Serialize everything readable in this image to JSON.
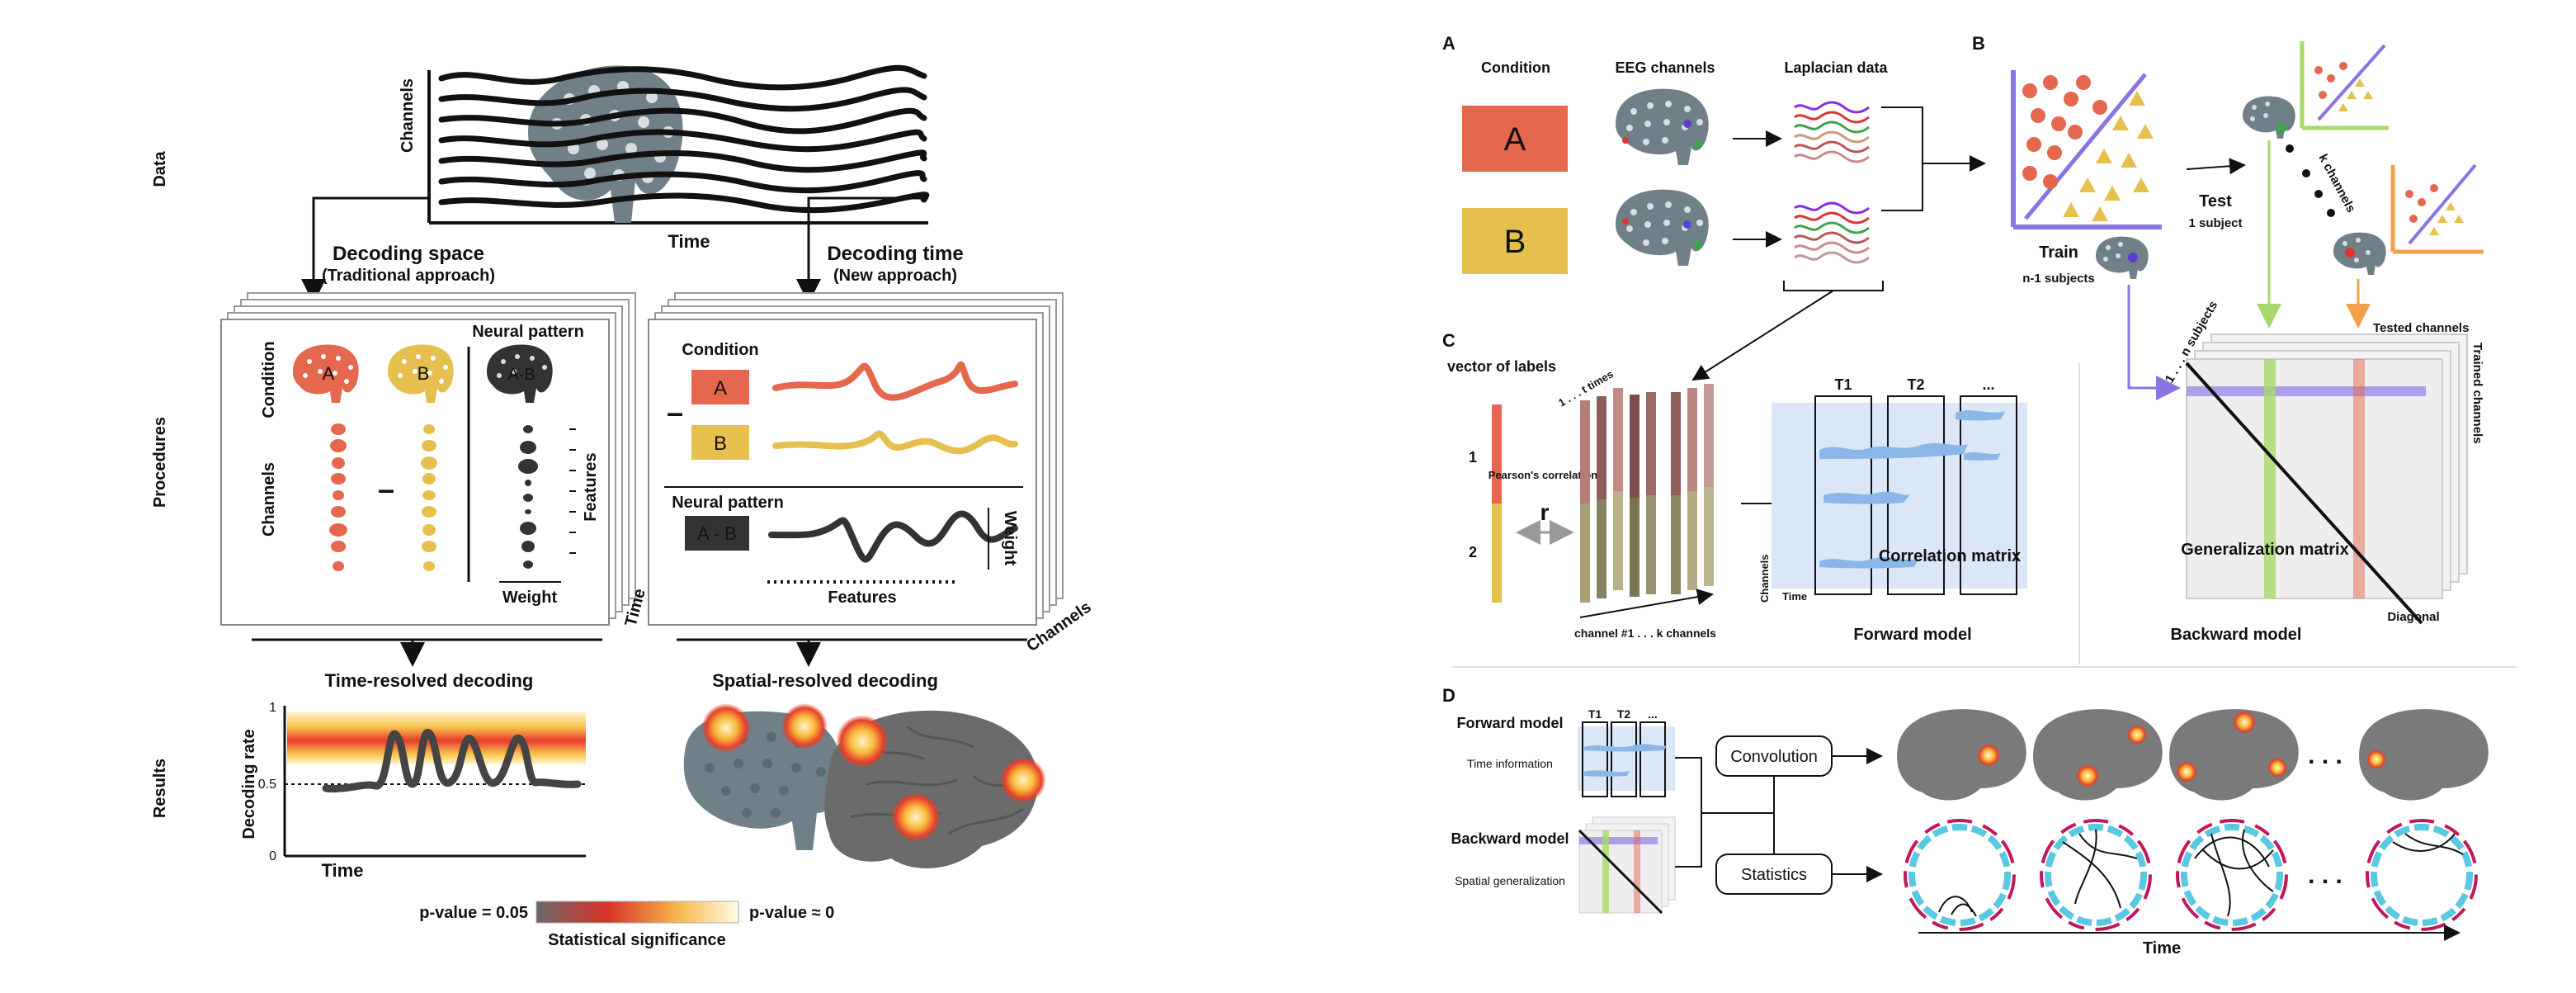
{
  "left": {
    "row_labels": {
      "data": "Data",
      "procedures": "Procedures",
      "results": "Results"
    },
    "data_panel": {
      "y_label": "Channels",
      "x_label": "Time"
    },
    "decoding_space": {
      "title": "Decoding space",
      "subtitle": "(Traditional approach)"
    },
    "decoding_time": {
      "title": "Decoding time",
      "subtitle": "(New approach)"
    },
    "space_card": {
      "condition_label": "Condition",
      "channels_label": "Channels",
      "head_a": "A",
      "head_b": "B",
      "head_ab": "A-B",
      "neural_pattern": "Neural pattern",
      "features_label": "Features",
      "weight_label": "Weight",
      "minus": "–",
      "stack_label": "Time"
    },
    "time_card": {
      "condition_label": "Condition",
      "box_a": "A",
      "box_b": "B",
      "minus": "–",
      "neural_pattern": "Neural pattern",
      "box_ab": "A - B",
      "weight_label": "Weight",
      "features_label": "Features",
      "stack_label": "Channels"
    },
    "time_resolved": {
      "title": "Time-resolved decoding",
      "y_label": "Decoding rate",
      "x_label": "Time",
      "tick_top": "1",
      "tick_mid": "0.5",
      "tick_bottom": "0"
    },
    "spatial_resolved": {
      "title": "Spatial-resolved decoding"
    },
    "colorbar": {
      "left_label": "p-value = 0.05",
      "right_label": "p-value ≈ 0",
      "caption": "Statistical significance"
    }
  },
  "right": {
    "panel_A": {
      "letter": "A",
      "col_condition": "Condition",
      "col_eeg": "EEG channels",
      "col_laplacian": "Laplacian data",
      "cond_a": "A",
      "cond_b": "B"
    },
    "panel_B": {
      "letter": "B",
      "train": "Train",
      "train_sub": "n-1 subjects",
      "test": "Test",
      "test_sub": "1 subject",
      "k_channels": "k channels",
      "subjects_axis": "1 . . . n subjects",
      "tested_channels": "Tested channels",
      "trained_channels": "Trained channels",
      "gen_matrix": "Generalization matrix",
      "diagonal": "Diagonal",
      "backward_model": "Backward model"
    },
    "panel_C": {
      "letter": "C",
      "vector_labels": "vector of labels",
      "label_1": "1",
      "label_2": "2",
      "pearson": "Pearson's correlation",
      "r": "r",
      "times_axis": "1 . . . t times",
      "channels_axis": "channel #1 . . . k channels",
      "t1": "T1",
      "t2": "T2",
      "tdots": "...",
      "channels": "Channels",
      "time": "Time",
      "corr_matrix": "Correlation matrix",
      "forward_model": "Forward model"
    },
    "panel_D": {
      "letter": "D",
      "forward": "Forward model",
      "forward_sub": "Time information",
      "backward": "Backward model",
      "backward_sub": "Spatial generalization",
      "t1": "T1",
      "t2": "T2",
      "tdots": "...",
      "convolution": "Convolution",
      "statistics": "Statistics",
      "dots": ". . .",
      "time": "Time"
    }
  },
  "colors": {
    "cond_a": "#e4674e",
    "cond_b": "#e6c04f",
    "head": "#6f8088",
    "purple": "#8a73e3",
    "green": "#a6d96a",
    "orange": "#f3a04a",
    "panel_blue": "#dbe7f7"
  }
}
